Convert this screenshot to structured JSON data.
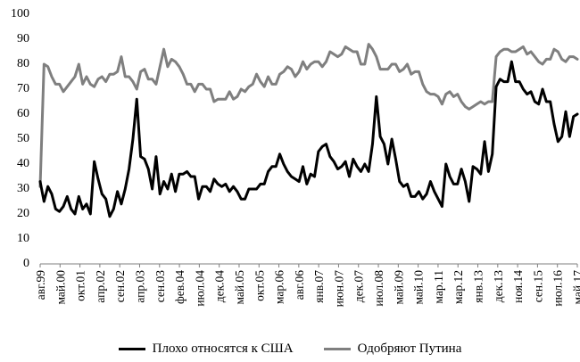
{
  "chart_data": {
    "type": "line",
    "title": "",
    "xlabel": "",
    "ylabel": "",
    "ylim": [
      0,
      100
    ],
    "yticks": [
      0,
      10,
      20,
      30,
      40,
      50,
      60,
      70,
      80,
      90,
      100
    ],
    "grid": false,
    "legend_position": "bottom",
    "x_tick_labels": [
      "авг.99",
      "май.00",
      "окт.01",
      "апр.02",
      "сен.02",
      "апр.03",
      "сен.03",
      "фев.04",
      "июл.04",
      "дек.04",
      "май.05",
      "окт.05",
      "мар.06",
      "авг.06",
      "янв.07",
      "июн.07",
      "дек.07",
      "июл.08",
      "май.09",
      "май.10",
      "мар.11",
      "мар.12",
      "янв.13",
      "дек.13",
      "ноя.14",
      "сен.15",
      "июл.16",
      "май.17"
    ],
    "series": [
      {
        "name": "Плохо относятся к США",
        "color": "#000000",
        "values": [
          33,
          25,
          31,
          28,
          22,
          21,
          23,
          27,
          22,
          20,
          27,
          22,
          24,
          20,
          41,
          34,
          28,
          26,
          19,
          22,
          29,
          24,
          30,
          38,
          50,
          66,
          43,
          42,
          38,
          30,
          43,
          28,
          33,
          30,
          36,
          29,
          36,
          36,
          37,
          35,
          35,
          26,
          31,
          31,
          29,
          34,
          32,
          31,
          32,
          29,
          31,
          29,
          26,
          26,
          30,
          30,
          30,
          32,
          32,
          37,
          39,
          39,
          44,
          40,
          37,
          35,
          34,
          33,
          39,
          32,
          36,
          35,
          45,
          47,
          48,
          43,
          41,
          38,
          39,
          41,
          35,
          42,
          39,
          37,
          40,
          37,
          48,
          67,
          51,
          48,
          40,
          50,
          42,
          33,
          31,
          32,
          27,
          27,
          29,
          26,
          28,
          33,
          29,
          26,
          23,
          40,
          35,
          32,
          32,
          38,
          33,
          25,
          39,
          38,
          36,
          49,
          37,
          44,
          71,
          74,
          73,
          73,
          81,
          73,
          73,
          70,
          68,
          69,
          65,
          64,
          70,
          65,
          65,
          56,
          49,
          51,
          61,
          51,
          59,
          60
        ],
        "approx": true
      },
      {
        "name": "Одобряют Путина",
        "color": "#7f7f7f",
        "values": [
          31,
          80,
          79,
          75,
          72,
          72,
          69,
          71,
          73,
          75,
          80,
          72,
          75,
          72,
          71,
          74,
          75,
          73,
          76,
          76,
          77,
          83,
          75,
          75,
          73,
          70,
          77,
          78,
          74,
          74,
          72,
          79,
          86,
          79,
          82,
          81,
          79,
          76,
          72,
          72,
          69,
          72,
          72,
          70,
          70,
          65,
          66,
          66,
          66,
          69,
          66,
          67,
          70,
          69,
          71,
          72,
          76,
          73,
          71,
          75,
          72,
          72,
          76,
          77,
          79,
          78,
          75,
          77,
          81,
          78,
          80,
          81,
          81,
          79,
          81,
          85,
          84,
          83,
          84,
          87,
          86,
          85,
          85,
          80,
          80,
          88,
          86,
          83,
          78,
          78,
          78,
          80,
          80,
          77,
          78,
          80,
          76,
          77,
          77,
          72,
          69,
          68,
          68,
          67,
          64,
          68,
          69,
          67,
          68,
          65,
          63,
          62,
          63,
          64,
          65,
          64,
          65,
          65,
          83,
          85,
          86,
          86,
          85,
          85,
          86,
          87,
          84,
          85,
          83,
          81,
          80,
          82,
          82,
          86,
          85,
          82,
          81,
          83,
          83,
          82
        ],
        "approx": true
      }
    ]
  },
  "legend": {
    "items": [
      {
        "label": "Плохо относятся к США",
        "color": "#000000"
      },
      {
        "label": "Одобряют Путина",
        "color": "#7f7f7f"
      }
    ]
  }
}
